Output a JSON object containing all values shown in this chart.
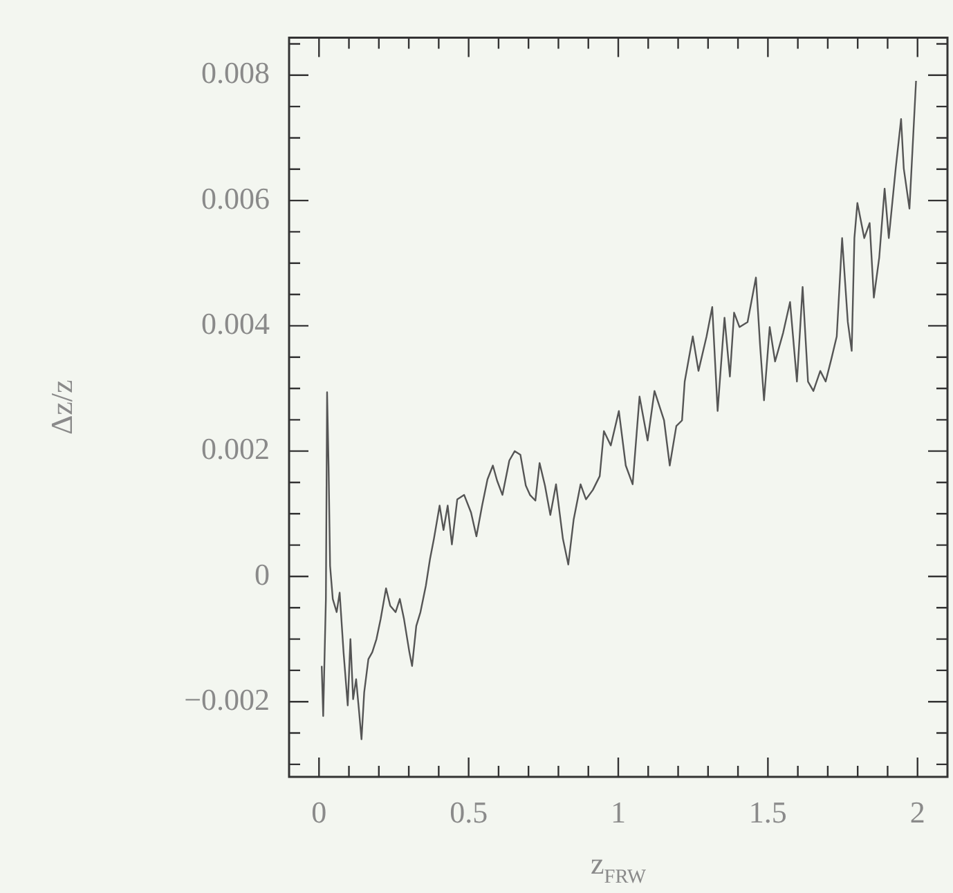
{
  "chart_data": {
    "type": "line",
    "xlabel": "z$_{FRW}$",
    "ylabel": "Δz/z",
    "marker": "none",
    "xlim": [
      -0.1,
      2.1
    ],
    "xticks": [
      0,
      {
        "value": 0.1,
        "label": null
      },
      {
        "value": 0.2,
        "label": null
      },
      {
        "value": 0.3,
        "label": null
      },
      {
        "value": 0.4,
        "label": null
      },
      0.5,
      {
        "value": 0.6,
        "label": null
      },
      {
        "value": 0.7,
        "label": null
      },
      {
        "value": 0.8,
        "label": null
      },
      {
        "value": 0.9,
        "label": null
      },
      1,
      {
        "value": 1.1,
        "label": null
      },
      {
        "value": 1.2,
        "label": null
      },
      {
        "value": 1.3,
        "label": null
      },
      {
        "value": 1.4,
        "label": null
      },
      1.5,
      {
        "value": 1.6,
        "label": null
      },
      {
        "value": 1.7,
        "label": null
      },
      {
        "value": 1.8,
        "label": null
      },
      {
        "value": 1.9,
        "label": null
      },
      2
    ],
    "ylim": [
      -0.0032,
      0.0086
    ],
    "yticks": [
      {
        "value": -0.003,
        "label": null
      },
      {
        "value": -0.0025,
        "label": null
      },
      {
        "value": -0.002,
        "label": "−0.002"
      },
      {
        "value": -0.0015,
        "label": null
      },
      {
        "value": -0.001,
        "label": null
      },
      {
        "value": -0.0005,
        "label": null
      },
      0,
      {
        "value": 0.0005,
        "label": null
      },
      {
        "value": 0.001,
        "label": null
      },
      {
        "value": 0.0015,
        "label": null
      },
      0.002,
      {
        "value": 0.0025,
        "label": null
      },
      {
        "value": 0.003,
        "label": null
      },
      {
        "value": 0.0035,
        "label": null
      },
      0.004,
      {
        "value": 0.0045,
        "label": null
      },
      {
        "value": 0.005,
        "label": null
      },
      {
        "value": 0.0055,
        "label": null
      },
      0.006,
      {
        "value": 0.0065,
        "label": null
      },
      {
        "value": 0.007,
        "label": null
      },
      {
        "value": 0.0075,
        "label": null
      },
      0.008,
      {
        "value": 0.0085,
        "label": null
      }
    ],
    "series": [
      {
        "color": "#555555",
        "x": [
          0.009,
          0.014,
          0.023,
          0.027,
          0.032,
          0.037,
          0.046,
          0.059,
          0.069,
          0.082,
          0.096,
          0.105,
          0.114,
          0.124,
          0.133,
          0.142,
          0.151,
          0.165,
          0.178,
          0.192,
          0.206,
          0.224,
          0.238,
          0.256,
          0.27,
          0.284,
          0.302,
          0.311,
          0.325,
          0.339,
          0.357,
          0.371,
          0.384,
          0.403,
          0.416,
          0.43,
          0.444,
          0.462,
          0.485,
          0.508,
          0.526,
          0.545,
          0.563,
          0.581,
          0.595,
          0.613,
          0.636,
          0.654,
          0.673,
          0.691,
          0.705,
          0.723,
          0.737,
          0.755,
          0.773,
          0.792,
          0.815,
          0.833,
          0.851,
          0.874,
          0.892,
          0.915,
          0.938,
          0.952,
          0.975,
          1.002,
          1.025,
          1.048,
          1.071,
          1.098,
          1.121,
          1.153,
          1.172,
          1.194,
          1.213,
          1.222,
          1.249,
          1.268,
          1.295,
          1.314,
          1.332,
          1.355,
          1.373,
          1.387,
          1.405,
          1.432,
          1.46,
          1.474,
          1.487,
          1.506,
          1.524,
          1.551,
          1.574,
          1.597,
          1.616,
          1.634,
          1.652,
          1.675,
          1.693,
          1.712,
          1.73,
          1.748,
          1.767,
          1.78,
          1.789,
          1.799,
          1.822,
          1.84,
          1.854,
          1.872,
          1.89,
          1.904,
          1.927,
          1.945,
          1.954,
          1.973,
          1.995
        ],
        "values": [
          -0.00143,
          -0.00223,
          -0.00036,
          0.00294,
          0.00177,
          0.00017,
          -0.00036,
          -0.00057,
          -0.00026,
          -0.00121,
          -0.00206,
          -0.001,
          -0.00196,
          -0.00164,
          -0.00211,
          -0.0026,
          -0.00185,
          -0.00132,
          -0.00121,
          -0.001,
          -0.00068,
          -0.00019,
          -0.00047,
          -0.00057,
          -0.00036,
          -0.00068,
          -0.00121,
          -0.00143,
          -0.00079,
          -0.00057,
          -0.00015,
          0.00028,
          0.0006,
          0.00113,
          0.00074,
          0.00113,
          0.00051,
          0.00123,
          0.0013,
          0.00102,
          0.00064,
          0.00113,
          0.00155,
          0.00177,
          0.00153,
          0.0013,
          0.00185,
          0.002,
          0.00194,
          0.00145,
          0.0013,
          0.00121,
          0.00181,
          0.00145,
          0.00098,
          0.00147,
          0.0006,
          0.00019,
          0.00091,
          0.00147,
          0.00123,
          0.00138,
          0.0016,
          0.00232,
          0.00209,
          0.00264,
          0.00177,
          0.00147,
          0.00287,
          0.00217,
          0.00296,
          0.00249,
          0.00177,
          0.0024,
          0.00249,
          0.00311,
          0.00383,
          0.00328,
          0.00383,
          0.0043,
          0.00264,
          0.00413,
          0.00319,
          0.00421,
          0.00398,
          0.00406,
          0.00477,
          0.00368,
          0.00281,
          0.00398,
          0.00343,
          0.00389,
          0.00438,
          0.00311,
          0.00462,
          0.00311,
          0.00296,
          0.00328,
          0.00311,
          0.00347,
          0.00383,
          0.0054,
          0.00406,
          0.0036,
          0.0054,
          0.00596,
          0.0054,
          0.00564,
          0.00445,
          0.00509,
          0.00619,
          0.0054,
          0.00651,
          0.0073,
          0.00651,
          0.00587,
          0.00791
        ]
      }
    ]
  }
}
